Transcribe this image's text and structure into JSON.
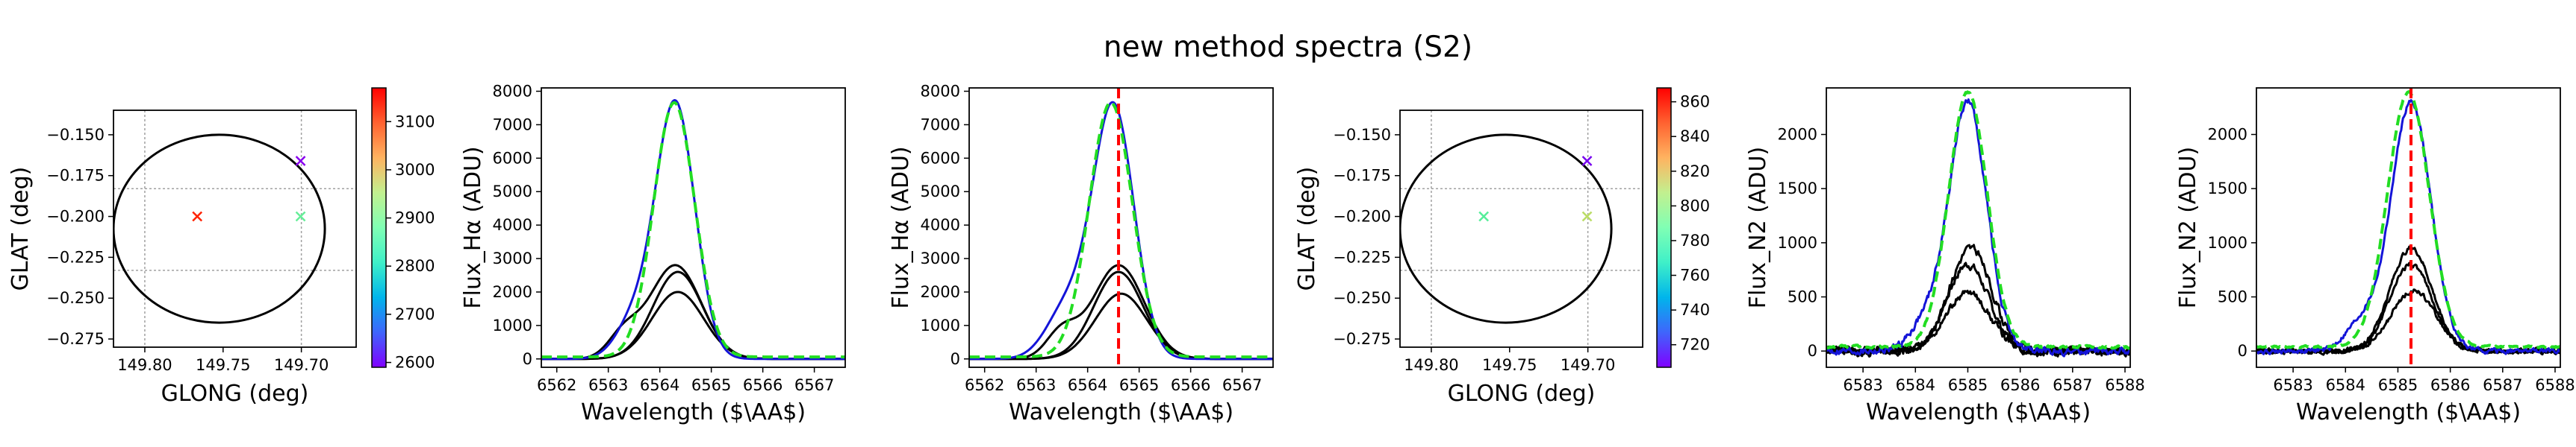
{
  "title": "new method spectra (S2)",
  "colors": {
    "axis": "#000000",
    "grid": "#a0a0a0",
    "blue_curve": "#1414d8",
    "black_curve": "#000000",
    "green_dashed": "#22dd22",
    "red_line": "#ff0000",
    "circle": "#000000"
  },
  "chart_data": [
    {
      "type": "scatter",
      "panel": "map-1",
      "xlabel": "GLONG (deg)",
      "ylabel": "GLAT (deg)",
      "xlim": [
        149.82,
        149.665
      ],
      "ylim": [
        -0.28,
        -0.135
      ],
      "xticks": [
        149.8,
        149.75,
        149.7
      ],
      "xtick_labels": [
        "149.80",
        "149.75",
        "149.70"
      ],
      "yticks": [
        -0.275,
        -0.25,
        -0.225,
        -0.2,
        -0.175,
        -0.15
      ],
      "ytick_labels": [
        "−0.275",
        "−0.250",
        "−0.225",
        "−0.200",
        "−0.175",
        "−0.150"
      ],
      "grid_lines_x": [
        149.8,
        149.7
      ],
      "grid_lines_y": [
        -0.233,
        -0.183
      ],
      "circle": {
        "cx": 149.7525,
        "cy": -0.2075,
        "rx": 0.0675,
        "ry": 0.0575
      },
      "points": [
        {
          "x": 149.7665,
          "y": -0.2,
          "value": 3150,
          "color": "#ff2200"
        },
        {
          "x": 149.7005,
          "y": -0.2,
          "value": 2840,
          "color": "#66ee99"
        },
        {
          "x": 149.7005,
          "y": -0.166,
          "value": 2620,
          "color": "#8800ee"
        }
      ],
      "marker": "x",
      "colorbar": {
        "vmin": 2590,
        "vmax": 3170,
        "ticks": [
          2600,
          2700,
          2800,
          2900,
          3000,
          3100
        ],
        "tick_labels": [
          "2600",
          "2700",
          "2800",
          "2900",
          "3000",
          "3100"
        ],
        "colormap": "rainbow"
      }
    },
    {
      "type": "line",
      "panel": "spectrum-ha-1",
      "xlabel": "Wavelength ($\\AA$)",
      "ylabel": "Flux_Hα (ADU)",
      "xlim": [
        6561.7,
        6567.6
      ],
      "ylim": [
        -250,
        8100
      ],
      "xticks": [
        6562,
        6563,
        6564,
        6565,
        6566,
        6567
      ],
      "xtick_labels": [
        "6562",
        "6563",
        "6564",
        "6565",
        "6566",
        "6567"
      ],
      "yticks": [
        0,
        1000,
        2000,
        3000,
        4000,
        5000,
        6000,
        7000,
        8000
      ],
      "ytick_labels": [
        "0",
        "1000",
        "2000",
        "3000",
        "4000",
        "5000",
        "6000",
        "7000",
        "8000"
      ],
      "series": [
        {
          "name": "observed-blue",
          "style": "solid",
          "color": "#1414d8",
          "profile": {
            "center": 6564.3,
            "amp": 7650,
            "sigma": 0.38,
            "shoulder": {
              "center": 6563.5,
              "amp": 1100,
              "sigma": 0.35
            }
          }
        },
        {
          "name": "model-green",
          "style": "dashed",
          "color": "#22dd22",
          "profile": {
            "center": 6564.28,
            "amp": 7600,
            "sigma": 0.4,
            "base": 60
          }
        },
        {
          "name": "component-1",
          "style": "solid",
          "color": "#000000",
          "profile": {
            "center": 6564.3,
            "amp": 2800,
            "sigma": 0.5,
            "shoulder": {
              "center": 6563.3,
              "amp": 700,
              "sigma": 0.3
            }
          }
        },
        {
          "name": "component-2",
          "style": "solid",
          "color": "#000000",
          "profile": {
            "center": 6564.35,
            "amp": 2600,
            "sigma": 0.48
          }
        },
        {
          "name": "component-3",
          "style": "solid",
          "color": "#000000",
          "profile": {
            "center": 6564.35,
            "amp": 2000,
            "sigma": 0.5
          }
        }
      ]
    },
    {
      "type": "line",
      "panel": "spectrum-ha-2",
      "xlabel": "Wavelength ($\\AA$)",
      "ylabel": "Flux_Hα (ADU)",
      "xlim": [
        6561.7,
        6567.6
      ],
      "ylim": [
        -250,
        8100
      ],
      "xticks": [
        6562,
        6563,
        6564,
        6565,
        6566,
        6567
      ],
      "xtick_labels": [
        "6562",
        "6563",
        "6564",
        "6565",
        "6566",
        "6567"
      ],
      "yticks": [
        0,
        1000,
        2000,
        3000,
        4000,
        5000,
        6000,
        7000,
        8000
      ],
      "ytick_labels": [
        "0",
        "1000",
        "2000",
        "3000",
        "4000",
        "5000",
        "6000",
        "7000",
        "8000"
      ],
      "vline": {
        "x": 6564.6,
        "color": "#ff0000",
        "style": "dashed"
      },
      "series": [
        {
          "name": "observed-blue",
          "style": "solid",
          "color": "#1414d8",
          "profile": {
            "center": 6564.5,
            "amp": 7550,
            "sigma": 0.4,
            "shoulder": {
              "center": 6563.6,
              "amp": 1500,
              "sigma": 0.4
            }
          }
        },
        {
          "name": "model-green",
          "style": "dashed",
          "color": "#22dd22",
          "profile": {
            "center": 6564.45,
            "amp": 7600,
            "sigma": 0.42,
            "base": 60
          }
        },
        {
          "name": "component-1",
          "style": "solid",
          "color": "#000000",
          "profile": {
            "center": 6564.6,
            "amp": 2800,
            "sigma": 0.5,
            "shoulder": {
              "center": 6563.5,
              "amp": 800,
              "sigma": 0.3
            }
          }
        },
        {
          "name": "component-2",
          "style": "solid",
          "color": "#000000",
          "profile": {
            "center": 6564.6,
            "amp": 2600,
            "sigma": 0.48
          }
        },
        {
          "name": "component-3",
          "style": "solid",
          "color": "#000000",
          "profile": {
            "center": 6564.65,
            "amp": 1950,
            "sigma": 0.5
          }
        }
      ]
    },
    {
      "type": "scatter",
      "panel": "map-2",
      "xlabel": "GLONG (deg)",
      "ylabel": "GLAT (deg)",
      "xlim": [
        149.82,
        149.665
      ],
      "ylim": [
        -0.28,
        -0.135
      ],
      "xticks": [
        149.8,
        149.75,
        149.7
      ],
      "xtick_labels": [
        "149.80",
        "149.75",
        "149.70"
      ],
      "yticks": [
        -0.275,
        -0.25,
        -0.225,
        -0.2,
        -0.175,
        -0.15
      ],
      "ytick_labels": [
        "−0.275",
        "−0.250",
        "−0.225",
        "−0.200",
        "−0.175",
        "−0.150"
      ],
      "grid_lines_x": [
        149.8,
        149.7
      ],
      "grid_lines_y": [
        -0.233,
        -0.183
      ],
      "circle": {
        "cx": 149.7525,
        "cy": -0.2075,
        "rx": 0.0675,
        "ry": 0.0575
      },
      "points": [
        {
          "x": 149.7665,
          "y": -0.2,
          "value": 770,
          "color": "#55ee99"
        },
        {
          "x": 149.7005,
          "y": -0.2,
          "value": 805,
          "color": "#bbdd66"
        },
        {
          "x": 149.7005,
          "y": -0.166,
          "value": 715,
          "color": "#7700ee"
        }
      ],
      "marker": "x",
      "colorbar": {
        "vmin": 707,
        "vmax": 868,
        "ticks": [
          720,
          740,
          760,
          780,
          800,
          820,
          840,
          860
        ],
        "tick_labels": [
          "720",
          "740",
          "760",
          "780",
          "800",
          "820",
          "840",
          "860"
        ],
        "colormap": "rainbow"
      }
    },
    {
      "type": "line",
      "panel": "spectrum-n2-1",
      "xlabel": "Wavelength ($\\AA$)",
      "ylabel": "Flux_N2 (ADU)",
      "xlim": [
        6582.3,
        6588.1
      ],
      "ylim": [
        -150,
        2430
      ],
      "xticks": [
        6583,
        6584,
        6585,
        6586,
        6587,
        6588
      ],
      "xtick_labels": [
        "6583",
        "6584",
        "6585",
        "6586",
        "6587",
        "6588"
      ],
      "yticks": [
        0,
        500,
        1000,
        1500,
        2000
      ],
      "ytick_labels": [
        "0",
        "500",
        "1000",
        "1500",
        "2000"
      ],
      "series": [
        {
          "name": "observed-blue",
          "style": "solid",
          "color": "#1414d8",
          "noise": 60,
          "profile": {
            "center": 6585.0,
            "amp": 2300,
            "sigma": 0.36,
            "shoulder": {
              "center": 6584.2,
              "amp": 250,
              "sigma": 0.3
            }
          }
        },
        {
          "name": "model-green",
          "style": "dashed",
          "color": "#22dd22",
          "noise": 20,
          "profile": {
            "center": 6585.0,
            "amp": 2350,
            "sigma": 0.37,
            "base": 40
          }
        },
        {
          "name": "component-1",
          "style": "solid",
          "color": "#000000",
          "noise": 70,
          "profile": {
            "center": 6585.05,
            "amp": 950,
            "sigma": 0.4
          }
        },
        {
          "name": "component-2",
          "style": "solid",
          "color": "#000000",
          "noise": 70,
          "profile": {
            "center": 6585.0,
            "amp": 800,
            "sigma": 0.4
          }
        },
        {
          "name": "component-3",
          "style": "solid",
          "color": "#000000",
          "noise": 60,
          "profile": {
            "center": 6585.0,
            "amp": 540,
            "sigma": 0.42
          }
        }
      ]
    },
    {
      "type": "line",
      "panel": "spectrum-n2-2",
      "xlabel": "Wavelength ($\\AA$)",
      "ylabel": "Flux_N2 (ADU)",
      "xlim": [
        6582.3,
        6588.1
      ],
      "ylim": [
        -150,
        2430
      ],
      "xticks": [
        6583,
        6584,
        6585,
        6586,
        6587,
        6588
      ],
      "xtick_labels": [
        "6583",
        "6584",
        "6585",
        "6586",
        "6587",
        "6588"
      ],
      "yticks": [
        0,
        500,
        1000,
        1500,
        2000
      ],
      "ytick_labels": [
        "0",
        "500",
        "1000",
        "1500",
        "2000"
      ],
      "vline": {
        "x": 6585.25,
        "color": "#ff0000",
        "style": "dashed"
      },
      "series": [
        {
          "name": "observed-blue",
          "style": "solid",
          "color": "#1414d8",
          "noise": 40,
          "profile": {
            "center": 6585.25,
            "amp": 2300,
            "sigma": 0.38,
            "shoulder": {
              "center": 6584.3,
              "amp": 250,
              "sigma": 0.3
            }
          }
        },
        {
          "name": "model-green",
          "style": "dashed",
          "color": "#22dd22",
          "noise": 15,
          "profile": {
            "center": 6585.2,
            "amp": 2350,
            "sigma": 0.4,
            "base": 40
          }
        },
        {
          "name": "component-1",
          "style": "solid",
          "color": "#000000",
          "noise": 40,
          "profile": {
            "center": 6585.25,
            "amp": 950,
            "sigma": 0.4
          }
        },
        {
          "name": "component-2",
          "style": "solid",
          "color": "#000000",
          "noise": 40,
          "profile": {
            "center": 6585.25,
            "amp": 800,
            "sigma": 0.4
          }
        },
        {
          "name": "component-3",
          "style": "solid",
          "color": "#000000",
          "noise": 40,
          "profile": {
            "center": 6585.3,
            "amp": 560,
            "sigma": 0.42
          }
        }
      ]
    }
  ]
}
